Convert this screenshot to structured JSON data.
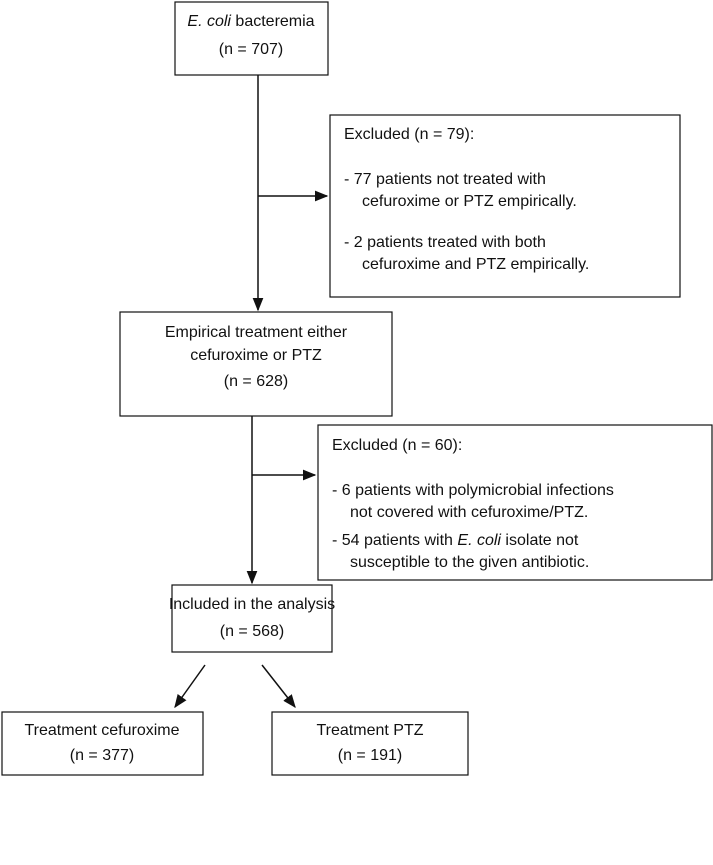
{
  "nodes": [
    {
      "lines": [
        [
          {
            "text": "E. coli",
            "italic": true
          },
          {
            "text": " bacteremia",
            "italic": false
          }
        ],
        "(n = 707)"
      ]
    },
    {
      "lines": [
        "Excluded (n = 79):",
        "- 77 patients not treated with",
        "cefuroxime or PTZ empirically.",
        "- 2 patients treated with both",
        "cefuroxime and PTZ empirically."
      ]
    },
    {
      "lines": [
        "Empirical treatment either",
        "cefuroxime or PTZ",
        "(n = 628)"
      ]
    },
    {
      "lines": [
        "Excluded (n = 60):",
        "- 6 patients with polymicrobial infections",
        "not covered with cefuroxime/PTZ.",
        [
          {
            "text": "- 54 patients with ",
            "italic": false
          },
          {
            "text": "E. coli",
            "italic": true
          },
          {
            "text": " isolate not",
            "italic": false
          }
        ],
        "susceptible to the given antibiotic."
      ]
    },
    {
      "lines": [
        "Included in the analysis",
        "(n = 568)"
      ]
    },
    {
      "lines": [
        "Treatment cefuroxime",
        "(n = 377)"
      ]
    },
    {
      "lines": [
        "Treatment PTZ",
        "(n = 191)"
      ]
    }
  ]
}
